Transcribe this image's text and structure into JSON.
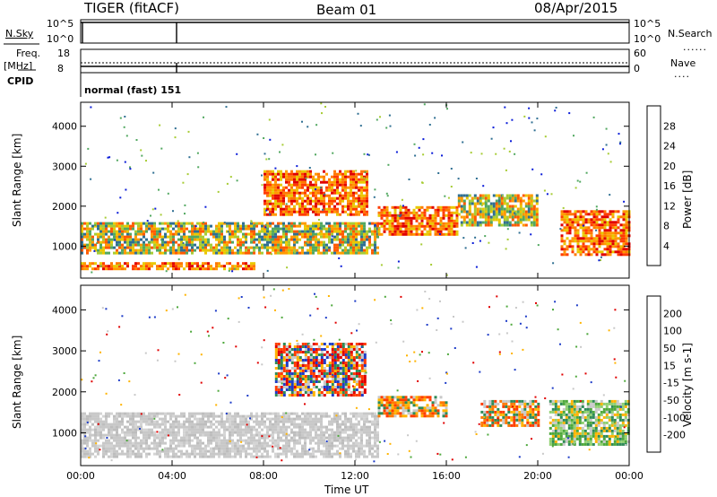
{
  "header": {
    "radar": "TIGER (fitACF)",
    "beam": "Beam 01",
    "date": "08/Apr/2015"
  },
  "top_panels": {
    "nsky_label": "N.Sky",
    "nsearch_label": "N.Search",
    "nsky_ticks": [
      "10^5",
      "10^0"
    ],
    "nsearch_ticks": [
      "10^5",
      "10^0"
    ],
    "freq_label": "Freq.",
    "freq_unit": "[MHz]",
    "freq_ticks": [
      "18",
      "8"
    ],
    "nave_label": "Nave",
    "nave_ticks": [
      "60",
      "0"
    ],
    "cpid_label": "CPID",
    "cpid_value": "normal (fast) 151"
  },
  "chart_data": [
    {
      "type": "heatmap",
      "name": "power",
      "ylabel": "Slant Range [km]",
      "yticks": [
        "4000",
        "3000",
        "2000",
        "1000"
      ],
      "ylim": [
        200,
        4600
      ],
      "xlim": [
        "00:00",
        "24:00"
      ],
      "colorbar_label": "Power [dB]",
      "colorbar_ticks": [
        "28",
        "24",
        "20",
        "16",
        "12",
        "8",
        "4"
      ],
      "colorbar_colors": [
        "#e00000",
        "#ff5a00",
        "#ff9a00",
        "#e9c800",
        "#a7cc35",
        "#52a860",
        "#2f6f92",
        "#0a1cd8"
      ],
      "echo_regions": [
        {
          "t0": 0.0,
          "t1": 7.6,
          "r0": 400,
          "r1": 600,
          "level": "high"
        },
        {
          "t0": 0.0,
          "t1": 13.0,
          "r0": 800,
          "r1": 1600,
          "level": "mid"
        },
        {
          "t0": 8.0,
          "t1": 12.5,
          "r0": 1800,
          "r1": 2900,
          "level": "high"
        },
        {
          "t0": 13.0,
          "t1": 16.5,
          "r0": 1300,
          "r1": 2000,
          "level": "high"
        },
        {
          "t0": 16.5,
          "t1": 20.0,
          "r0": 1500,
          "r1": 2300,
          "level": "mid"
        },
        {
          "t0": 21.0,
          "t1": 24.0,
          "r0": 800,
          "r1": 1900,
          "level": "high"
        }
      ]
    },
    {
      "type": "heatmap",
      "name": "velocity",
      "ylabel": "Slant Range [km]",
      "yticks": [
        "4000",
        "3000",
        "2000",
        "1000"
      ],
      "ylim": [
        200,
        4600
      ],
      "xlim": [
        "00:00",
        "24:00"
      ],
      "xticks": [
        "00:00",
        "04:00",
        "08:00",
        "12:00",
        "16:00",
        "20:00",
        "00:00"
      ],
      "xlabel": "Time UT",
      "colorbar_label": "Velocity [m s-1]",
      "colorbar_ticks": [
        "200",
        "100",
        "50",
        "15",
        "-15",
        "-50",
        "-100",
        "-200"
      ],
      "colorbar_colors": [
        "#1e3cc8",
        "#2e8b57",
        "#4ea83c",
        "#8fd070",
        "#c8c8c8",
        "#ffb400",
        "#ff7800",
        "#ff3c00",
        "#e00000"
      ],
      "echo_regions": [
        {
          "t0": 0.0,
          "t1": 13.0,
          "r0": 400,
          "r1": 1500,
          "level": "gray"
        },
        {
          "t0": 8.5,
          "t1": 12.5,
          "r0": 1900,
          "r1": 3200,
          "level": "red-blue"
        },
        {
          "t0": 13.0,
          "t1": 16.0,
          "r0": 1400,
          "r1": 1900,
          "level": "orange"
        },
        {
          "t0": 17.5,
          "t1": 20.0,
          "r0": 1200,
          "r1": 1800,
          "level": "orange"
        },
        {
          "t0": 20.5,
          "t1": 24.0,
          "r0": 700,
          "r1": 1800,
          "level": "green"
        }
      ]
    }
  ]
}
